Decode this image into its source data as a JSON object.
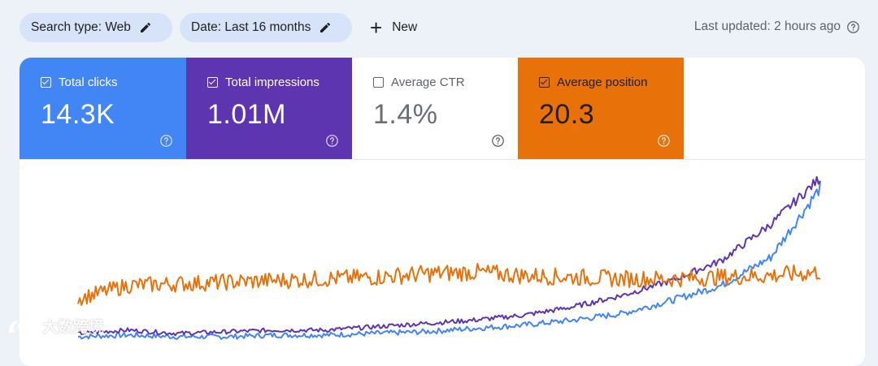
{
  "toolbar": {
    "search_type_label": "Search type: Web",
    "date_label": "Date: Last 16 months",
    "new_label": "New",
    "last_updated": "Last updated: 2 hours ago"
  },
  "metrics": [
    {
      "label": "Total clicks",
      "value": "14.3K",
      "checked": true,
      "color": "#4285f4"
    },
    {
      "label": "Total impressions",
      "value": "1.01M",
      "checked": true,
      "color": "#5e35b1"
    },
    {
      "label": "Average CTR",
      "value": "1.4%",
      "checked": false,
      "color": "#ffffff"
    },
    {
      "label": "Average position",
      "value": "20.3",
      "checked": true,
      "color": "#e8710a"
    }
  ],
  "watermark": "大数跨境",
  "chart_data": {
    "type": "line",
    "title": "",
    "xlabel": "",
    "ylabel": "",
    "x": [
      1,
      2,
      3,
      4,
      5,
      6,
      7,
      8,
      9,
      10,
      11,
      12,
      13,
      14,
      15,
      16
    ],
    "series": [
      {
        "name": "Total clicks",
        "color": "#4285f4",
        "values": [
          2,
          3,
          2,
          2,
          3,
          3,
          4,
          5,
          7,
          9,
          12,
          16,
          24,
          33,
          50,
          92
        ]
      },
      {
        "name": "Total impressions",
        "color": "#5e35b1",
        "values": [
          4,
          6,
          4,
          5,
          6,
          6,
          8,
          10,
          12,
          15,
          20,
          27,
          36,
          48,
          70,
          98
        ]
      },
      {
        "name": "Average position",
        "color": "#e8710a",
        "values": [
          25,
          33,
          34,
          35,
          36,
          37,
          38,
          40,
          41,
          39,
          38,
          37,
          37,
          38,
          39,
          41
        ]
      }
    ],
    "ylim": [
      0,
      100
    ],
    "grid": false
  }
}
